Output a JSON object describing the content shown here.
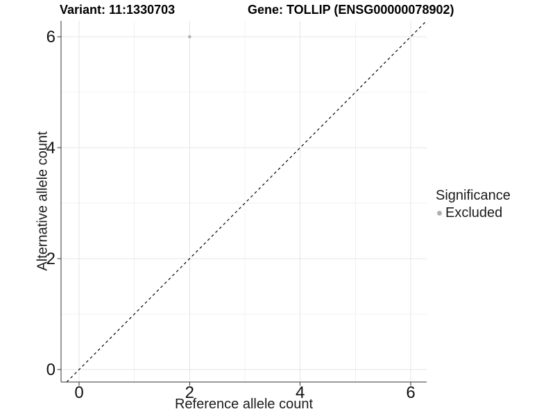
{
  "chart_data": {
    "type": "scatter",
    "title_left": "Variant: 11:1330703",
    "title_right": "Gene: TOLLIP (ENSG00000078902)",
    "xlabel": "Reference allele count",
    "ylabel": "Alternative allele count",
    "x_ticks": [
      0,
      2,
      4,
      6
    ],
    "y_ticks": [
      0,
      2,
      4,
      6
    ],
    "xlim": [
      -0.33,
      6.29
    ],
    "ylim": [
      -0.23,
      6.29
    ],
    "grid": "on",
    "points": [
      {
        "x": 2,
        "y": 6,
        "significance": "Excluded"
      }
    ],
    "reference_line": {
      "type": "identity y=x",
      "style": "dashed",
      "color": "#000000"
    },
    "legend": {
      "title": "Significance",
      "position": "right",
      "items": [
        {
          "label": "Excluded",
          "color": "#b0b0b0",
          "marker": "circle"
        }
      ]
    },
    "colors": {
      "background": "#ffffff",
      "point": "#b3b3b3",
      "grid_major": "#e4e4e4",
      "grid_minor": "#f1f1f1",
      "axis": "#333333",
      "tick_label": "#111111"
    }
  }
}
